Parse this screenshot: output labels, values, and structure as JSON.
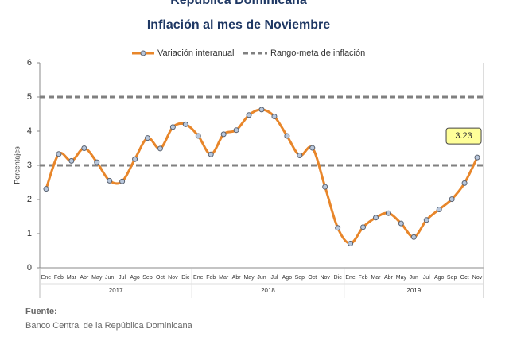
{
  "chart_data": {
    "type": "line",
    "title": "República Dominicana",
    "subtitle": "Inflación al mes de Noviembre",
    "y_label": "Porcentajes",
    "groups": [
      {
        "name": "2017",
        "categories": [
          "Ene",
          "Feb",
          "Mar",
          "Abr",
          "May",
          "Jun",
          "Jul",
          "Ago",
          "Sep",
          "Oct",
          "Nov",
          "Dic"
        ]
      },
      {
        "name": "2018",
        "categories": [
          "Ene",
          "Feb",
          "Mar",
          "Abr",
          "May",
          "Jun",
          "Jul",
          "Ago",
          "Sep",
          "Oct",
          "Nov",
          "Dic"
        ]
      },
      {
        "name": "2019",
        "categories": [
          "Ene",
          "Feb",
          "Mar",
          "Abr",
          "May",
          "Jun",
          "Jul",
          "Ago",
          "Sep",
          "Oct",
          "Nov"
        ]
      }
    ],
    "series": [
      {
        "name": "Variación interanual",
        "color": "#e8862a",
        "marker_color": "#b8c7dc",
        "values": [
          2.31,
          3.33,
          3.13,
          3.5,
          3.09,
          2.55,
          2.53,
          3.18,
          3.8,
          3.49,
          4.12,
          4.2,
          3.86,
          3.32,
          3.91,
          4.03,
          4.47,
          4.63,
          4.43,
          3.86,
          3.29,
          3.51,
          2.37,
          1.17,
          0.71,
          1.19,
          1.47,
          1.6,
          1.3,
          0.9,
          1.4,
          1.71,
          2.01,
          2.48,
          3.23
        ],
        "value_labels": [
          null,
          null,
          null,
          null,
          null,
          null,
          null,
          null,
          null,
          null,
          null,
          null,
          null,
          null,
          null,
          null,
          null,
          null,
          null,
          null,
          null,
          null,
          null,
          null,
          null,
          null,
          null,
          null,
          null,
          null,
          null,
          null,
          null,
          null,
          "3.23"
        ]
      }
    ],
    "reference_lines": {
      "name": "Rango-meta de inflación",
      "color": "#808080",
      "values": [
        3,
        5
      ]
    },
    "ylim": [
      0,
      6
    ],
    "yticks": [
      0,
      1,
      2,
      3,
      4,
      5,
      6
    ],
    "source_heading": "Fuente:",
    "source": "Banco Central de la República Dominicana"
  }
}
